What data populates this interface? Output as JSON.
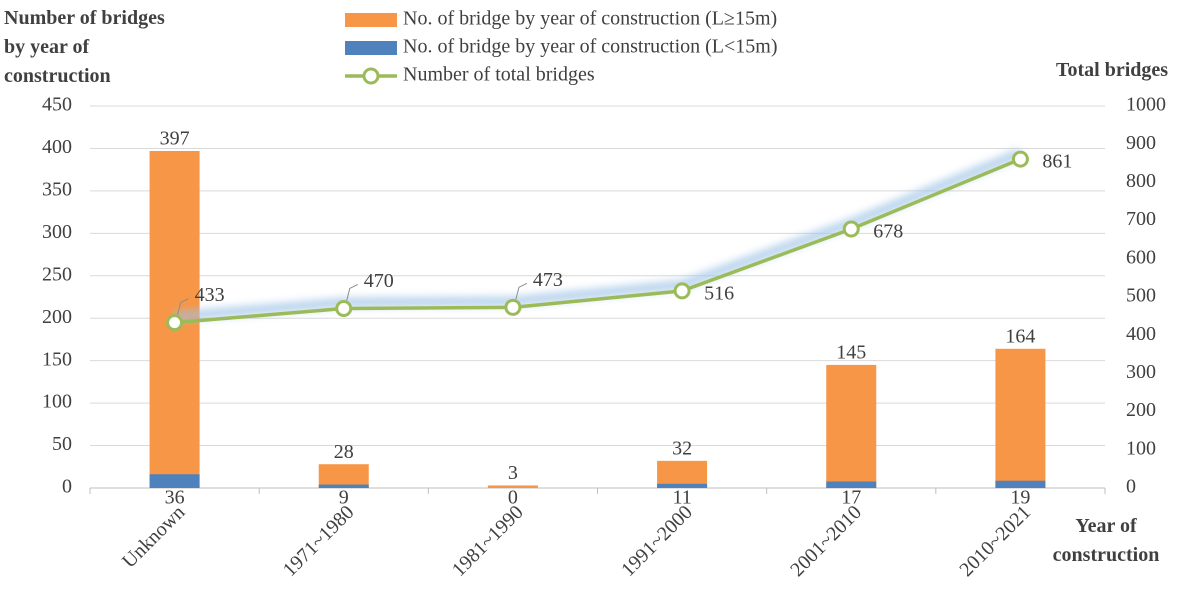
{
  "chart_data": {
    "type": "bar",
    "categories": [
      "Unknown",
      "1971~1980",
      "1981~1990",
      "1991~2000",
      "2001~2010",
      "2010~2021"
    ],
    "series": [
      {
        "name": "No. of bridge by year of construction (L≥15m)",
        "type": "bar",
        "axis": "y",
        "color": "#F79646",
        "values": [
          397,
          28,
          3,
          32,
          145,
          164
        ]
      },
      {
        "name": "No. of bridge by year of construction (L<15m)",
        "type": "bar",
        "axis": "y2",
        "color": "#4F81BD",
        "values": [
          36,
          9,
          0,
          11,
          17,
          19
        ]
      },
      {
        "name": "Number of total bridges",
        "type": "line",
        "axis": "y2",
        "color": "#9BBB59",
        "values": [
          433,
          470,
          473,
          516,
          678,
          861
        ]
      }
    ],
    "ylabel": "Number of bridges by year of construction",
    "y2label": "Total bridges",
    "xlabel": "Year of construction",
    "ylim": [
      0,
      450
    ],
    "yticks": [
      0,
      50,
      100,
      150,
      200,
      250,
      300,
      350,
      400,
      450
    ],
    "y2lim": [
      0,
      1000
    ],
    "y2ticks": [
      0,
      100,
      200,
      300,
      400,
      500,
      600,
      700,
      800,
      900,
      1000
    ],
    "grid": true,
    "legend": "top"
  }
}
